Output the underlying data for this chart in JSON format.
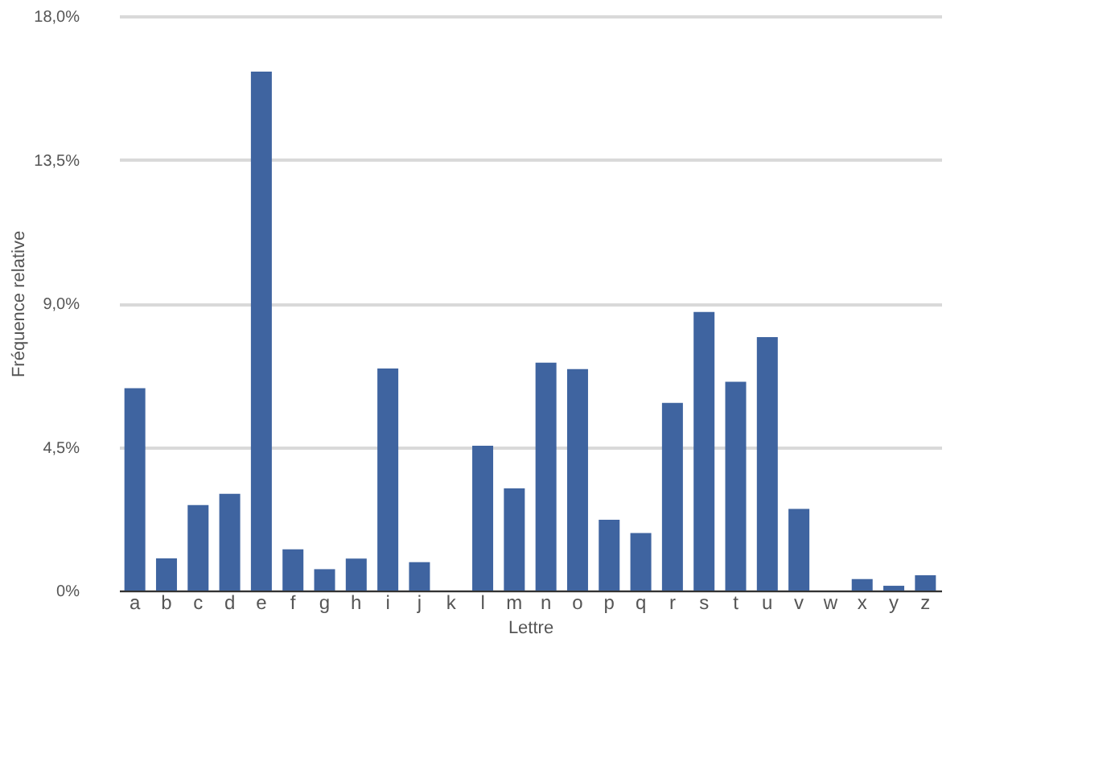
{
  "chart_data": {
    "type": "bar",
    "xlabel": "Lettre",
    "ylabel": "Fréquence relative",
    "categories": [
      "a",
      "b",
      "c",
      "d",
      "e",
      "f",
      "g",
      "h",
      "i",
      "j",
      "k",
      "l",
      "m",
      "n",
      "o",
      "p",
      "q",
      "r",
      "s",
      "t",
      "u",
      "v",
      "w",
      "x",
      "y",
      "z"
    ],
    "series": [
      {
        "color": "#3f64a0",
        "values": [
          6.34,
          1.01,
          2.68,
          3.03,
          16.26,
          1.29,
          0.67,
          1.0,
          6.96,
          0.89,
          0,
          4.54,
          3.2,
          7.14,
          6.94,
          2.22,
          1.8,
          5.88,
          8.73,
          6.54,
          7.94,
          2.56,
          0,
          0.36,
          0.15,
          0.48
        ]
      }
    ],
    "ylim": [
      0,
      18
    ],
    "yticks": [
      {
        "value": 0,
        "label": "0%"
      },
      {
        "value": 4.5,
        "label": "4,5%"
      },
      {
        "value": 9,
        "label": "9,0%"
      },
      {
        "value": 13.5,
        "label": "13,5%"
      },
      {
        "value": 18,
        "label": "18,0%"
      }
    ],
    "grid": "y",
    "legend": false
  }
}
